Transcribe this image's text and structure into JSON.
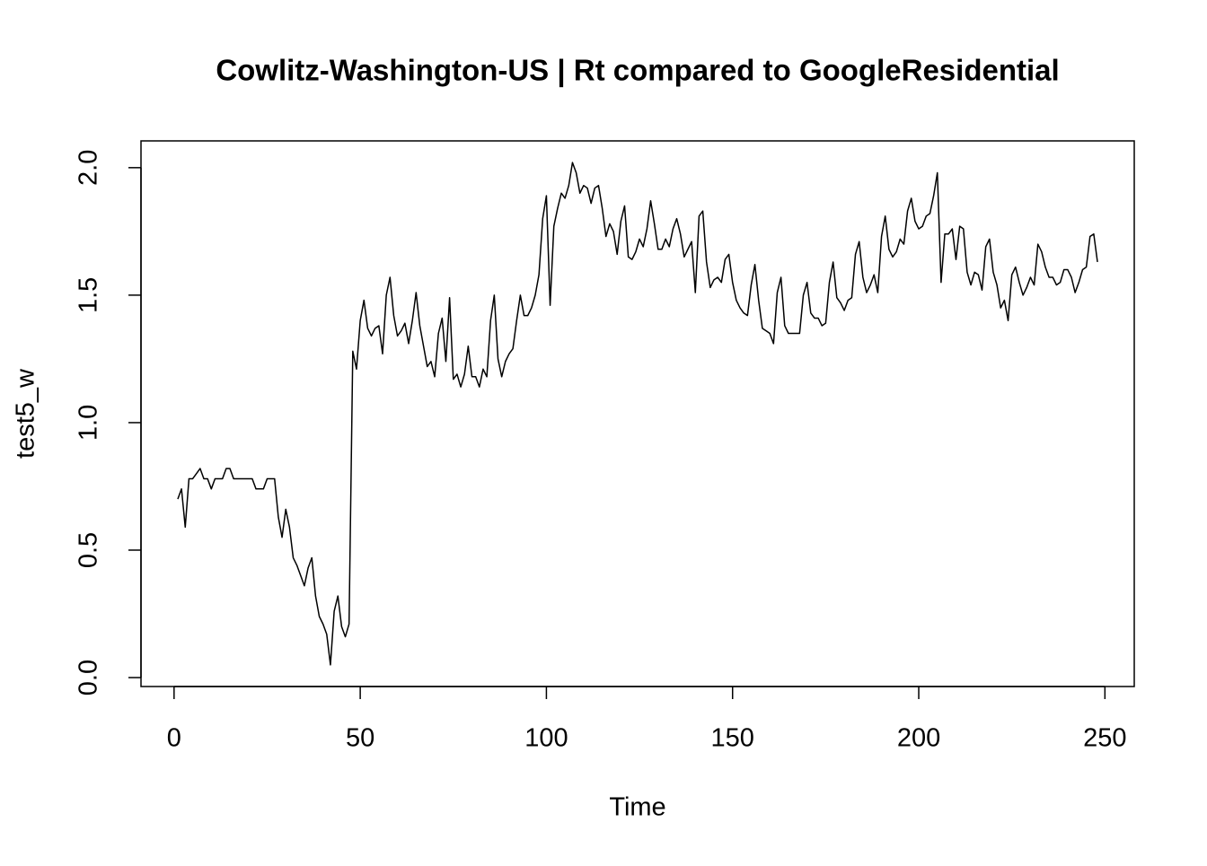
{
  "chart_data": {
    "type": "line",
    "title": "Cowlitz-Washington-US | Rt compared to GoogleResidential",
    "xlabel": "Time",
    "ylabel": "test5_w",
    "color": "#000000",
    "x": [
      1,
      2,
      3,
      4,
      5,
      6,
      7,
      8,
      9,
      10,
      11,
      12,
      13,
      14,
      15,
      16,
      17,
      18,
      19,
      20,
      21,
      22,
      23,
      24,
      25,
      26,
      27,
      28,
      29,
      30,
      31,
      32,
      33,
      34,
      35,
      36,
      37,
      38,
      39,
      40,
      41,
      42,
      43,
      44,
      45,
      46,
      47,
      48,
      49,
      50,
      51,
      52,
      53,
      54,
      55,
      56,
      57,
      58,
      59,
      60,
      61,
      62,
      63,
      64,
      65,
      66,
      67,
      68,
      69,
      70,
      71,
      72,
      73,
      74,
      75,
      76,
      77,
      78,
      79,
      80,
      81,
      82,
      83,
      84,
      85,
      86,
      87,
      88,
      89,
      90,
      91,
      92,
      93,
      94,
      95,
      96,
      97,
      98,
      99,
      100,
      101,
      102,
      103,
      104,
      105,
      106,
      107,
      108,
      109,
      110,
      111,
      112,
      113,
      114,
      115,
      116,
      117,
      118,
      119,
      120,
      121,
      122,
      123,
      124,
      125,
      126,
      127,
      128,
      129,
      130,
      131,
      132,
      133,
      134,
      135,
      136,
      137,
      138,
      139,
      140,
      141,
      142,
      143,
      144,
      145,
      146,
      147,
      148,
      149,
      150,
      151,
      152,
      153,
      154,
      155,
      156,
      157,
      158,
      159,
      160,
      161,
      162,
      163,
      164,
      165,
      166,
      167,
      168,
      169,
      170,
      171,
      172,
      173,
      174,
      175,
      176,
      177,
      178,
      179,
      180,
      181,
      182,
      183,
      184,
      185,
      186,
      187,
      188,
      189,
      190,
      191,
      192,
      193,
      194,
      195,
      196,
      197,
      198,
      199,
      200,
      201,
      202,
      203,
      204,
      205,
      206,
      207,
      208,
      209,
      210,
      211,
      212,
      213,
      214,
      215,
      216,
      217,
      218,
      219,
      220,
      221,
      222,
      223,
      224,
      225,
      226,
      227,
      228,
      229,
      230,
      231,
      232,
      233,
      234,
      235,
      236,
      237,
      238,
      239,
      240,
      241,
      242,
      243,
      244,
      245,
      246,
      247,
      248
    ],
    "values": [
      0.7,
      0.74,
      0.59,
      0.78,
      0.78,
      0.8,
      0.82,
      0.78,
      0.78,
      0.74,
      0.78,
      0.78,
      0.78,
      0.82,
      0.82,
      0.78,
      0.78,
      0.78,
      0.78,
      0.78,
      0.78,
      0.74,
      0.74,
      0.74,
      0.78,
      0.78,
      0.78,
      0.63,
      0.55,
      0.66,
      0.59,
      0.47,
      0.44,
      0.4,
      0.36,
      0.43,
      0.47,
      0.32,
      0.24,
      0.21,
      0.17,
      0.05,
      0.26,
      0.32,
      0.2,
      0.16,
      0.21,
      1.28,
      1.21,
      1.4,
      1.48,
      1.37,
      1.34,
      1.37,
      1.38,
      1.27,
      1.5,
      1.57,
      1.42,
      1.34,
      1.36,
      1.39,
      1.31,
      1.4,
      1.51,
      1.38,
      1.3,
      1.22,
      1.24,
      1.18,
      1.35,
      1.41,
      1.24,
      1.49,
      1.17,
      1.19,
      1.14,
      1.19,
      1.3,
      1.18,
      1.18,
      1.14,
      1.21,
      1.18,
      1.4,
      1.5,
      1.25,
      1.18,
      1.24,
      1.27,
      1.29,
      1.4,
      1.5,
      1.42,
      1.42,
      1.45,
      1.5,
      1.58,
      1.8,
      1.89,
      1.46,
      1.77,
      1.84,
      1.9,
      1.88,
      1.93,
      2.02,
      1.98,
      1.9,
      1.93,
      1.92,
      1.86,
      1.92,
      1.93,
      1.84,
      1.73,
      1.78,
      1.75,
      1.66,
      1.79,
      1.85,
      1.65,
      1.64,
      1.67,
      1.72,
      1.69,
      1.76,
      1.87,
      1.78,
      1.68,
      1.68,
      1.72,
      1.69,
      1.76,
      1.8,
      1.74,
      1.65,
      1.68,
      1.71,
      1.51,
      1.81,
      1.83,
      1.63,
      1.53,
      1.56,
      1.57,
      1.55,
      1.64,
      1.66,
      1.55,
      1.48,
      1.45,
      1.43,
      1.42,
      1.54,
      1.62,
      1.48,
      1.37,
      1.36,
      1.35,
      1.31,
      1.51,
      1.57,
      1.38,
      1.35,
      1.35,
      1.35,
      1.35,
      1.5,
      1.55,
      1.43,
      1.41,
      1.41,
      1.38,
      1.39,
      1.55,
      1.63,
      1.49,
      1.47,
      1.44,
      1.48,
      1.49,
      1.66,
      1.71,
      1.57,
      1.51,
      1.54,
      1.58,
      1.51,
      1.73,
      1.81,
      1.68,
      1.65,
      1.67,
      1.72,
      1.7,
      1.83,
      1.88,
      1.79,
      1.76,
      1.77,
      1.81,
      1.82,
      1.89,
      1.98,
      1.55,
      1.74,
      1.74,
      1.76,
      1.64,
      1.77,
      1.76,
      1.59,
      1.54,
      1.59,
      1.58,
      1.52,
      1.69,
      1.72,
      1.59,
      1.54,
      1.45,
      1.48,
      1.4,
      1.58,
      1.61,
      1.55,
      1.5,
      1.53,
      1.57,
      1.54,
      1.7,
      1.67,
      1.61,
      1.57,
      1.57,
      1.54,
      1.55,
      1.6,
      1.6,
      1.57,
      1.51,
      1.55,
      1.6,
      1.61,
      1.73,
      1.74,
      1.63
    ],
    "xlim": [
      -8.88,
      257.88
    ],
    "ylim": [
      -0.035,
      2.105
    ],
    "xticks": [
      0,
      50,
      100,
      150,
      200,
      250
    ],
    "yticks": [
      {
        "value": 0,
        "label": "0.0"
      },
      0.5,
      {
        "value": 1,
        "label": "1.0"
      },
      1.5,
      {
        "value": 2,
        "label": "2.0"
      }
    ]
  }
}
